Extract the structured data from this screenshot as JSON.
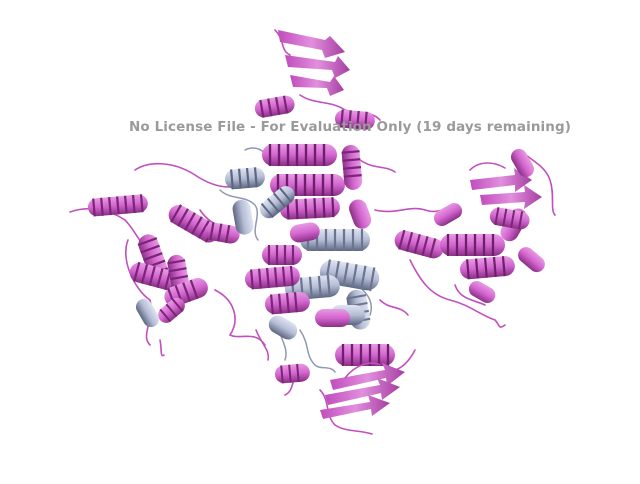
{
  "watermark": {
    "text": "No License File - For Evaluation Only (19 days remaining)",
    "color": "#9a9a9a"
  },
  "scene": {
    "background": "#ffffff",
    "chain_colors": {
      "chain_a": "#d96ad4",
      "chain_a_dark": "#8a2f86",
      "chain_b": "#b9c2dc",
      "chain_b_dark": "#59627a"
    }
  }
}
